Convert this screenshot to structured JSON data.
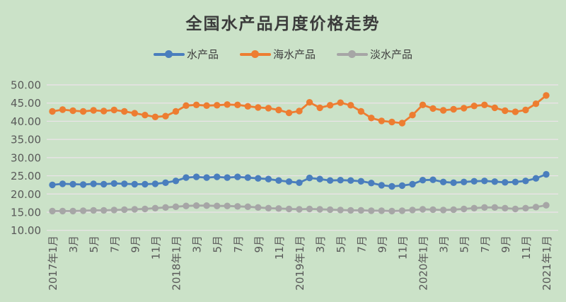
{
  "title": "全国水产品月度价格走势",
  "colors": {
    "background": "#cbe2c8",
    "gridline": "#ece3ea",
    "axis_text": "#595959",
    "title_text": "#3b3b3b",
    "series_blue": "#4a7ebd",
    "series_orange": "#ed7d31",
    "series_gray": "#a6a6a6"
  },
  "chart_data": {
    "type": "line",
    "title": "全国水产品月度价格走势",
    "xlabel": "",
    "ylabel": "",
    "ylim": [
      10,
      50
    ],
    "y_ticks": [
      "50.00",
      "45.00",
      "40.00",
      "35.00",
      "30.00",
      "25.00",
      "20.00",
      "15.00",
      "10.00"
    ],
    "grid": true,
    "legend_position": "top",
    "marker": "circle",
    "x_tick_labels": [
      "2017年1月",
      "3月",
      "5月",
      "7月",
      "9月",
      "11月",
      "2018年1月",
      "3月",
      "5月",
      "7月",
      "9月",
      "11月",
      "2019年1月",
      "3月",
      "5月",
      "7月",
      "9月",
      "11月",
      "2020年1月",
      "3月",
      "5月",
      "7月",
      "9月",
      "11月",
      "2021年1月"
    ],
    "categories": [
      "2017年1月",
      "2017年2月",
      "2017年3月",
      "2017年4月",
      "2017年5月",
      "2017年6月",
      "2017年7月",
      "2017年8月",
      "2017年9月",
      "2017年10月",
      "2017年11月",
      "2017年12月",
      "2018年1月",
      "2018年2月",
      "2018年3月",
      "2018年4月",
      "2018年5月",
      "2018年6月",
      "2018年7月",
      "2018年8月",
      "2018年9月",
      "2018年10月",
      "2018年11月",
      "2018年12月",
      "2019年1月",
      "2019年2月",
      "2019年3月",
      "2019年4月",
      "2019年5月",
      "2019年6月",
      "2019年7月",
      "2019年8月",
      "2019年9月",
      "2019年10月",
      "2019年11月",
      "2019年12月",
      "2020年1月",
      "2020年2月",
      "2020年3月",
      "2020年4月",
      "2020年5月",
      "2020年6月",
      "2020年7月",
      "2020年8月",
      "2020年9月",
      "2020年10月",
      "2020年11月",
      "2020年12月",
      "2021年1月"
    ],
    "series": [
      {
        "name": "水产品",
        "color": "#4a7ebd",
        "values": [
          22.5,
          22.8,
          22.7,
          22.6,
          22.8,
          22.7,
          22.9,
          22.8,
          22.7,
          22.7,
          22.8,
          23.1,
          23.6,
          24.5,
          24.7,
          24.5,
          24.7,
          24.5,
          24.7,
          24.5,
          24.3,
          24.1,
          23.7,
          23.4,
          23.1,
          24.4,
          24.1,
          23.7,
          23.8,
          23.7,
          23.5,
          23.0,
          22.4,
          22.1,
          22.3,
          22.7,
          23.8,
          23.9,
          23.3,
          23.1,
          23.3,
          23.5,
          23.6,
          23.4,
          23.2,
          23.3,
          23.6,
          24.3,
          25.4
        ]
      },
      {
        "name": "海水产品",
        "color": "#ed7d31",
        "values": [
          42.7,
          43.2,
          42.9,
          42.7,
          43.0,
          42.8,
          43.1,
          42.7,
          42.2,
          41.7,
          41.2,
          41.4,
          42.7,
          44.3,
          44.5,
          44.3,
          44.4,
          44.6,
          44.5,
          44.1,
          43.8,
          43.6,
          43.1,
          42.3,
          42.8,
          45.2,
          43.7,
          44.4,
          45.1,
          44.4,
          42.7,
          40.9,
          40.1,
          39.8,
          39.5,
          41.7,
          44.5,
          43.5,
          43.0,
          43.3,
          43.6,
          44.2,
          44.5,
          43.7,
          42.9,
          42.6,
          43.1,
          44.8,
          47.1
        ]
      },
      {
        "name": "淡水产品",
        "color": "#a6a6a6",
        "values": [
          15.3,
          15.3,
          15.3,
          15.4,
          15.5,
          15.5,
          15.6,
          15.7,
          15.8,
          15.9,
          16.1,
          16.3,
          16.5,
          16.7,
          16.8,
          16.8,
          16.7,
          16.7,
          16.6,
          16.5,
          16.3,
          16.1,
          16.0,
          15.9,
          15.8,
          15.9,
          15.8,
          15.7,
          15.6,
          15.5,
          15.5,
          15.4,
          15.4,
          15.3,
          15.4,
          15.6,
          15.8,
          15.7,
          15.6,
          15.7,
          15.9,
          16.1,
          16.3,
          16.3,
          16.1,
          15.9,
          16.1,
          16.4,
          16.9
        ]
      }
    ]
  }
}
